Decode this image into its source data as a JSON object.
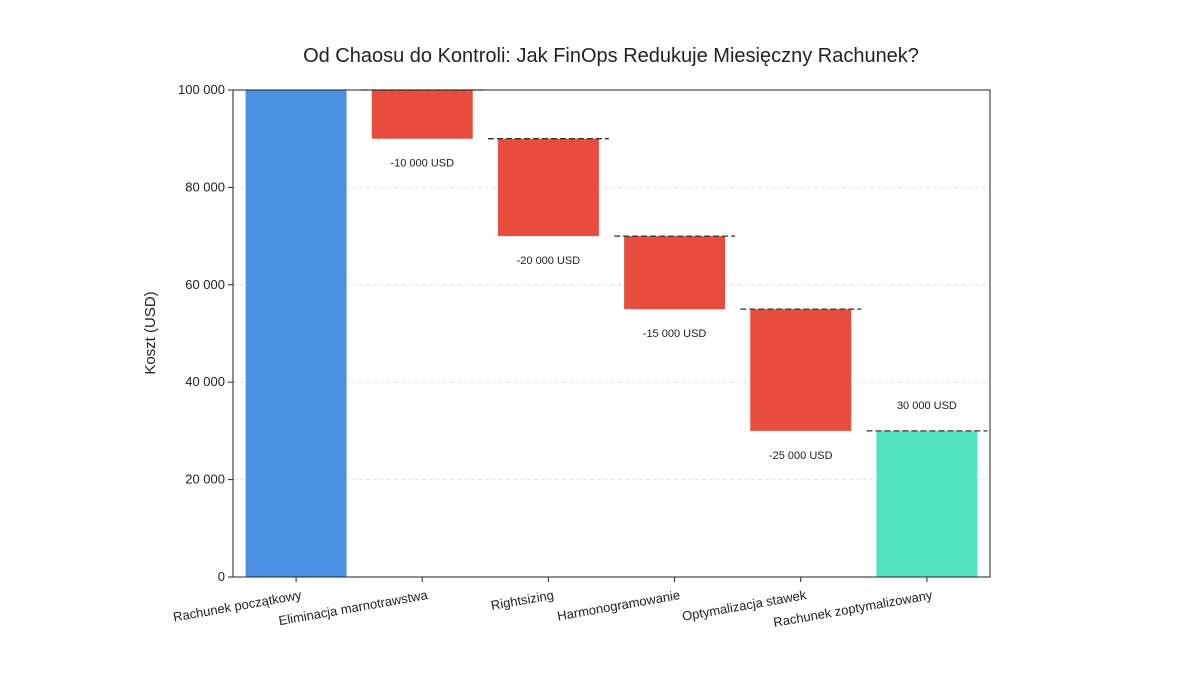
{
  "chart_data": {
    "type": "bar",
    "subtype": "waterfall",
    "title": "Od Chaosu do Kontroli: Jak FinOps Redukuje Miesięczny Rachunek?",
    "ylabel": "Koszt (USD)",
    "xlabel": "",
    "ylim": [
      0,
      100000
    ],
    "yticks": [
      0,
      20000,
      40000,
      60000,
      80000,
      100000
    ],
    "ytick_labels": [
      "0",
      "20 000",
      "40 000",
      "60 000",
      "80 000",
      "100 000"
    ],
    "grid": true,
    "categories": [
      "Rachunek początkowy",
      "Eliminacja marnotrawstwa",
      "Rightsizing",
      "Harmonogramowanie",
      "Optymalizacja stawek",
      "Rachunek zoptymalizowany"
    ],
    "bars": [
      {
        "category": "Rachunek początkowy",
        "kind": "total",
        "start": 0,
        "end": 100000,
        "color": "#4a90e2",
        "label": ""
      },
      {
        "category": "Eliminacja marnotrawstwa",
        "kind": "decrease",
        "start": 100000,
        "end": 90000,
        "value": -10000,
        "color": "#e74c3c",
        "label": "-10 000 USD"
      },
      {
        "category": "Rightsizing",
        "kind": "decrease",
        "start": 90000,
        "end": 70000,
        "value": -20000,
        "color": "#e74c3c",
        "label": "-20 000 USD"
      },
      {
        "category": "Harmonogramowanie",
        "kind": "decrease",
        "start": 70000,
        "end": 55000,
        "value": -15000,
        "color": "#e74c3c",
        "label": "-15 000 USD"
      },
      {
        "category": "Optymalizacja stawek",
        "kind": "decrease",
        "start": 55000,
        "end": 30000,
        "value": -25000,
        "color": "#e74c3c",
        "label": "-25 000 USD"
      },
      {
        "category": "Rachunek zoptymalizowany",
        "kind": "total",
        "start": 0,
        "end": 30000,
        "color": "#50e3c2",
        "label": "30 000 USD"
      }
    ]
  }
}
